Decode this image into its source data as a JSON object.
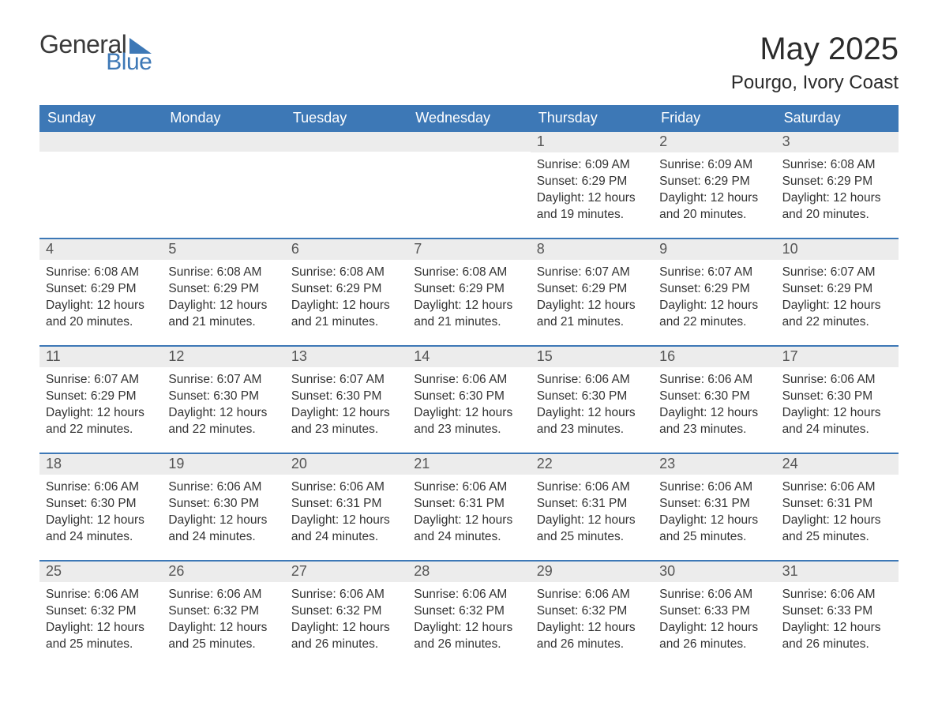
{
  "colors": {
    "header_bg": "#3d78b6",
    "header_text": "#ffffff",
    "daynum_bg": "#ececec",
    "daynum_text": "#555555",
    "body_text": "#333333",
    "page_bg": "#ffffff",
    "title_text": "#2b2b2b",
    "logo_gray": "#3a3a3a",
    "logo_blue": "#3d78b6",
    "week_border": "#3d78b6"
  },
  "typography": {
    "title_fontsize": 40,
    "subtitle_fontsize": 24,
    "dayname_fontsize": 18,
    "daynum_fontsize": 18,
    "body_fontsize": 15.5,
    "font_family": "Arial"
  },
  "logo": {
    "word1": "General",
    "word2": "Blue"
  },
  "title": "May 2025",
  "subtitle": "Pourgo, Ivory Coast",
  "day_names": [
    "Sunday",
    "Monday",
    "Tuesday",
    "Wednesday",
    "Thursday",
    "Friday",
    "Saturday"
  ],
  "labels": {
    "sunrise": "Sunrise: ",
    "sunset": "Sunset: ",
    "daylight": "Daylight: "
  },
  "layout": {
    "columns": 7,
    "rows": 5,
    "first_weekday_index": 4
  },
  "weeks": [
    [
      null,
      null,
      null,
      null,
      {
        "n": "1",
        "sunrise": "6:09 AM",
        "sunset": "6:29 PM",
        "daylight": "12 hours and 19 minutes."
      },
      {
        "n": "2",
        "sunrise": "6:09 AM",
        "sunset": "6:29 PM",
        "daylight": "12 hours and 20 minutes."
      },
      {
        "n": "3",
        "sunrise": "6:08 AM",
        "sunset": "6:29 PM",
        "daylight": "12 hours and 20 minutes."
      }
    ],
    [
      {
        "n": "4",
        "sunrise": "6:08 AM",
        "sunset": "6:29 PM",
        "daylight": "12 hours and 20 minutes."
      },
      {
        "n": "5",
        "sunrise": "6:08 AM",
        "sunset": "6:29 PM",
        "daylight": "12 hours and 21 minutes."
      },
      {
        "n": "6",
        "sunrise": "6:08 AM",
        "sunset": "6:29 PM",
        "daylight": "12 hours and 21 minutes."
      },
      {
        "n": "7",
        "sunrise": "6:08 AM",
        "sunset": "6:29 PM",
        "daylight": "12 hours and 21 minutes."
      },
      {
        "n": "8",
        "sunrise": "6:07 AM",
        "sunset": "6:29 PM",
        "daylight": "12 hours and 21 minutes."
      },
      {
        "n": "9",
        "sunrise": "6:07 AM",
        "sunset": "6:29 PM",
        "daylight": "12 hours and 22 minutes."
      },
      {
        "n": "10",
        "sunrise": "6:07 AM",
        "sunset": "6:29 PM",
        "daylight": "12 hours and 22 minutes."
      }
    ],
    [
      {
        "n": "11",
        "sunrise": "6:07 AM",
        "sunset": "6:29 PM",
        "daylight": "12 hours and 22 minutes."
      },
      {
        "n": "12",
        "sunrise": "6:07 AM",
        "sunset": "6:30 PM",
        "daylight": "12 hours and 22 minutes."
      },
      {
        "n": "13",
        "sunrise": "6:07 AM",
        "sunset": "6:30 PM",
        "daylight": "12 hours and 23 minutes."
      },
      {
        "n": "14",
        "sunrise": "6:06 AM",
        "sunset": "6:30 PM",
        "daylight": "12 hours and 23 minutes."
      },
      {
        "n": "15",
        "sunrise": "6:06 AM",
        "sunset": "6:30 PM",
        "daylight": "12 hours and 23 minutes."
      },
      {
        "n": "16",
        "sunrise": "6:06 AM",
        "sunset": "6:30 PM",
        "daylight": "12 hours and 23 minutes."
      },
      {
        "n": "17",
        "sunrise": "6:06 AM",
        "sunset": "6:30 PM",
        "daylight": "12 hours and 24 minutes."
      }
    ],
    [
      {
        "n": "18",
        "sunrise": "6:06 AM",
        "sunset": "6:30 PM",
        "daylight": "12 hours and 24 minutes."
      },
      {
        "n": "19",
        "sunrise": "6:06 AM",
        "sunset": "6:30 PM",
        "daylight": "12 hours and 24 minutes."
      },
      {
        "n": "20",
        "sunrise": "6:06 AM",
        "sunset": "6:31 PM",
        "daylight": "12 hours and 24 minutes."
      },
      {
        "n": "21",
        "sunrise": "6:06 AM",
        "sunset": "6:31 PM",
        "daylight": "12 hours and 24 minutes."
      },
      {
        "n": "22",
        "sunrise": "6:06 AM",
        "sunset": "6:31 PM",
        "daylight": "12 hours and 25 minutes."
      },
      {
        "n": "23",
        "sunrise": "6:06 AM",
        "sunset": "6:31 PM",
        "daylight": "12 hours and 25 minutes."
      },
      {
        "n": "24",
        "sunrise": "6:06 AM",
        "sunset": "6:31 PM",
        "daylight": "12 hours and 25 minutes."
      }
    ],
    [
      {
        "n": "25",
        "sunrise": "6:06 AM",
        "sunset": "6:32 PM",
        "daylight": "12 hours and 25 minutes."
      },
      {
        "n": "26",
        "sunrise": "6:06 AM",
        "sunset": "6:32 PM",
        "daylight": "12 hours and 25 minutes."
      },
      {
        "n": "27",
        "sunrise": "6:06 AM",
        "sunset": "6:32 PM",
        "daylight": "12 hours and 26 minutes."
      },
      {
        "n": "28",
        "sunrise": "6:06 AM",
        "sunset": "6:32 PM",
        "daylight": "12 hours and 26 minutes."
      },
      {
        "n": "29",
        "sunrise": "6:06 AM",
        "sunset": "6:32 PM",
        "daylight": "12 hours and 26 minutes."
      },
      {
        "n": "30",
        "sunrise": "6:06 AM",
        "sunset": "6:33 PM",
        "daylight": "12 hours and 26 minutes."
      },
      {
        "n": "31",
        "sunrise": "6:06 AM",
        "sunset": "6:33 PM",
        "daylight": "12 hours and 26 minutes."
      }
    ]
  ]
}
